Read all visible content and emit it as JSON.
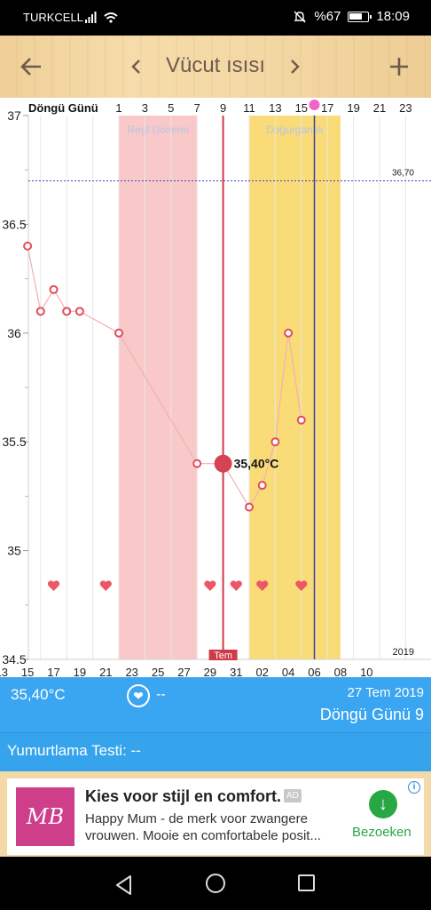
{
  "status_bar": {
    "carrier": "TURKCELL",
    "battery": "%67",
    "time": "18:09"
  },
  "toolbar": {
    "back_icon": "arrow-left-icon",
    "prev_icon": "chevron-left-icon",
    "title": "Vücut ısısı",
    "next_icon": "chevron-right-icon",
    "add_icon": "plus-icon"
  },
  "chart_data": {
    "type": "line",
    "top_axis_label": "Döngü Günü",
    "cycle_day_ticks": [
      "1",
      "3",
      "5",
      "7",
      "9",
      "11",
      "13",
      "15",
      "17",
      "19",
      "21",
      "23"
    ],
    "date_ticks": [
      "13",
      "15",
      "17",
      "19",
      "21",
      "23",
      "25",
      "27",
      "29",
      "31",
      "02",
      "04",
      "06",
      "08",
      "10"
    ],
    "y_ticks": [
      "37",
      "36.5",
      "36",
      "35.5",
      "35",
      "34.5"
    ],
    "ylim": [
      34.5,
      37
    ],
    "year_label": "2019",
    "month_label": "Tem",
    "threshold": {
      "value": 36.7,
      "label": "36,70"
    },
    "bands": [
      {
        "name": "Regl Dönemi",
        "from_day": 1,
        "to_day": 6,
        "color": "#f9c9c9"
      },
      {
        "name": "Doğurganlık",
        "from_day": 11,
        "to_day": 17,
        "color": "#f9dc78"
      }
    ],
    "selected_day": 9,
    "selected_label": "35,40°C",
    "ovulation_day": 16,
    "series": [
      {
        "color": "#f08a8a",
        "x_cycle_day": [
          -6,
          -5,
          -4,
          -3,
          -2,
          1,
          7,
          9,
          11,
          12,
          13,
          14,
          15
        ],
        "values": [
          36.4,
          36.1,
          36.2,
          36.1,
          36.1,
          36.0,
          35.4,
          35.4,
          35.2,
          35.3,
          35.5,
          36.0,
          35.6
        ]
      }
    ],
    "hearts_cycle_days": [
      -4,
      0,
      8,
      10,
      12,
      15
    ]
  },
  "info_bar": {
    "temperature": "35,40°C",
    "heart_icon": "heart-icon",
    "heart_value": "--",
    "date": "27 Tem 2019",
    "cycle_day": "Döngü Günü 9"
  },
  "ovulation_test": {
    "label": "Yumurtlama Testi: --"
  },
  "ad": {
    "logo_text": "MB",
    "title": "Kies voor stijl en comfort.",
    "badge": "AD",
    "text": "Happy Mum - de merk voor zwangere vrouwen. Mooie en comfortabele posit...",
    "cta": "Bezoeken",
    "info_icon": "info-icon",
    "cta_icon": "download-arrow-icon"
  },
  "nav_bar": {
    "back_icon": "nav-back-icon",
    "home_icon": "nav-home-icon",
    "recent_icon": "nav-recent-icon"
  }
}
